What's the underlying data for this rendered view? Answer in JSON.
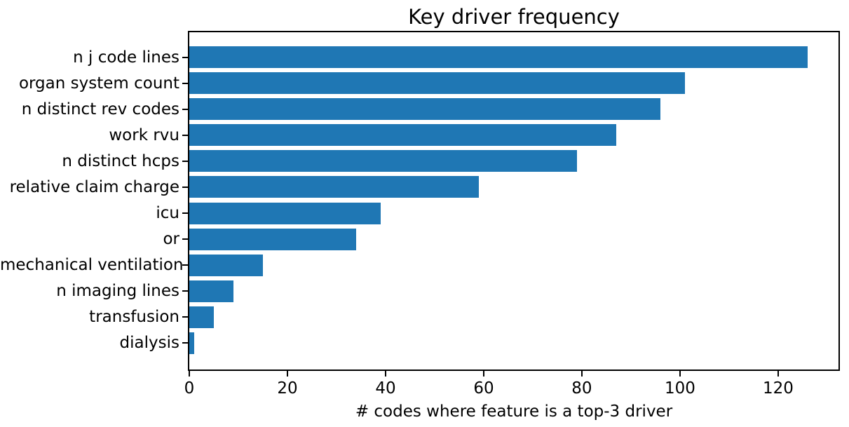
{
  "figure": {
    "background": "#ffffff"
  },
  "chart_data": {
    "type": "bar",
    "orientation": "horizontal",
    "title": "Key driver frequency",
    "xlabel": "# codes where feature is a top-3 driver",
    "ylabel": "",
    "categories": [
      "n j code lines",
      "organ system count",
      "n distinct rev codes",
      "work rvu",
      "n distinct hcps",
      "relative claim charge",
      "icu",
      "or",
      "mechanical ventilation",
      "n imaging lines",
      "transfusion",
      "dialysis"
    ],
    "values": [
      126,
      101,
      96,
      87,
      79,
      59,
      39,
      34,
      15,
      9,
      5,
      1
    ],
    "xticks": [
      0,
      20,
      40,
      60,
      80,
      100,
      120
    ],
    "xlim": [
      0,
      132.3
    ],
    "bar_color": "#1f77b4",
    "axis_color": "#000000",
    "text_color": "#000000",
    "grid": false,
    "legend": null
  }
}
